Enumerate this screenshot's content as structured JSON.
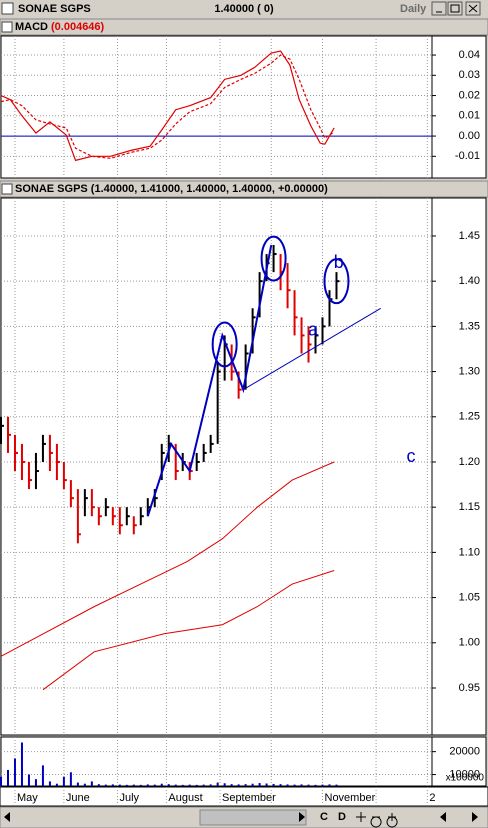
{
  "window": {
    "title": "SONAE SGPS",
    "last": "1.40000 ( 0)",
    "period": "Daily"
  },
  "toolbar": {
    "buttons": [
      "C",
      "D"
    ]
  },
  "chart_data": [
    {
      "type": "line",
      "title": "MACD",
      "value_label": "(0.004646)",
      "x": [
        0,
        4,
        9,
        15,
        21,
        28,
        32,
        39,
        47,
        56,
        64,
        69,
        75,
        81,
        90,
        96,
        103,
        109,
        116,
        120,
        124,
        128,
        133,
        137,
        139,
        143
      ],
      "series": [
        {
          "name": "MACD",
          "color": "#e00000",
          "dash": false,
          "values": [
            0.02,
            0.018,
            0.01,
            0.0015,
            0.007,
            0.0005,
            -0.012,
            -0.01,
            -0.01,
            -0.007,
            -0.005,
            0.003,
            0.013,
            0.015,
            0.019,
            0.028,
            0.03,
            0.034,
            0.041,
            0.042,
            0.035,
            0.018,
            0.005,
            -0.0035,
            -0.004,
            0.004
          ]
        },
        {
          "name": "Signal",
          "color": "#e00000",
          "dash": true,
          "values": [
            0.017,
            0.018,
            0.015,
            0.008,
            0.006,
            0.004,
            -0.006,
            -0.01,
            -0.011,
            -0.008,
            -0.006,
            -0.002,
            0.006,
            0.012,
            0.016,
            0.024,
            0.028,
            0.031,
            0.036,
            0.04,
            0.038,
            0.028,
            0.013,
            0.004,
            -0.001,
            0.002
          ]
        }
      ],
      "zero_line": 0,
      "zero_color": "#0000c0",
      "xlim": [
        0,
        185
      ],
      "ylim": [
        -0.0207,
        0.0494
      ],
      "yticks": [
        0.04,
        0.03,
        0.02,
        0.01,
        {
          "value": 0,
          "label": "0.00"
        },
        -0.01
      ]
    },
    {
      "type": "hlc",
      "title": "SONAE SGPS (1.40000, 1.41000, 1.40000, 1.40000, +0.00000)",
      "up_color": "#000000",
      "down_color": "#e00000",
      "x": [
        0,
        3,
        6,
        9,
        12,
        15,
        18,
        21,
        24,
        27,
        30,
        33,
        36,
        39,
        42,
        45,
        48,
        51,
        54,
        57,
        60,
        63,
        66,
        69,
        72,
        75,
        78,
        81,
        84,
        87,
        90,
        93,
        96,
        99,
        102,
        105,
        108,
        111,
        114,
        117,
        120,
        123,
        126,
        129,
        132,
        135,
        138,
        141,
        144
      ],
      "high": [
        1.25,
        1.25,
        1.23,
        1.22,
        1.2,
        1.21,
        1.23,
        1.23,
        1.22,
        1.2,
        1.18,
        1.17,
        1.17,
        1.17,
        1.15,
        1.16,
        1.15,
        1.15,
        1.15,
        1.14,
        1.15,
        1.16,
        1.17,
        1.22,
        1.23,
        1.22,
        1.21,
        1.2,
        1.21,
        1.22,
        1.23,
        1.31,
        1.34,
        1.33,
        1.3,
        1.33,
        1.37,
        1.41,
        1.43,
        1.44,
        1.43,
        1.42,
        1.39,
        1.36,
        1.35,
        1.35,
        1.36,
        1.39,
        1.41
      ],
      "low": [
        1.22,
        1.21,
        1.19,
        1.18,
        1.17,
        1.17,
        1.2,
        1.19,
        1.18,
        1.17,
        1.15,
        1.11,
        1.14,
        1.14,
        1.13,
        1.14,
        1.13,
        1.12,
        1.13,
        1.12,
        1.13,
        1.14,
        1.15,
        1.18,
        1.2,
        1.18,
        1.19,
        1.18,
        1.19,
        1.2,
        1.21,
        1.22,
        1.29,
        1.29,
        1.27,
        1.28,
        1.32,
        1.36,
        1.4,
        1.41,
        1.39,
        1.37,
        1.34,
        1.32,
        1.31,
        1.32,
        1.33,
        1.35,
        1.38
      ],
      "close": [
        1.24,
        1.23,
        1.21,
        1.2,
        1.18,
        1.19,
        1.22,
        1.21,
        1.2,
        1.18,
        1.16,
        1.12,
        1.16,
        1.15,
        1.14,
        1.15,
        1.14,
        1.13,
        1.14,
        1.13,
        1.14,
        1.15,
        1.16,
        1.21,
        1.22,
        1.19,
        1.2,
        1.19,
        1.2,
        1.21,
        1.22,
        1.3,
        1.33,
        1.3,
        1.28,
        1.32,
        1.36,
        1.4,
        1.42,
        1.43,
        1.41,
        1.39,
        1.36,
        1.34,
        1.33,
        1.34,
        1.35,
        1.38,
        1.4
      ],
      "bands": [
        {
          "color": "#e00000",
          "x": [
            0,
            40,
            80,
            95,
            110,
            125,
            143
          ],
          "values": [
            0.985,
            1.04,
            1.09,
            1.115,
            1.15,
            1.18,
            1.2
          ]
        },
        {
          "color": "#e00000",
          "x": [
            18,
            40,
            70,
            95,
            110,
            125,
            143
          ],
          "values": [
            0.948,
            0.99,
            1.01,
            1.02,
            1.04,
            1.065,
            1.08
          ]
        }
      ],
      "annotations": {
        "color": "#0000c0",
        "zigzag": {
          "x": [
            63,
            73,
            81,
            95,
            104,
            116
          ],
          "y": [
            1.14,
            1.22,
            1.19,
            1.34,
            1.28,
            1.44
          ]
        },
        "trendline": {
          "x": [
            104,
            163
          ],
          "y": [
            1.28,
            1.37
          ]
        },
        "ellipses": [
          {
            "x": 96,
            "y": 1.33
          },
          {
            "x": 117,
            "y": 1.425
          },
          {
            "x": 144,
            "y": 1.4
          }
        ],
        "labels": [
          {
            "text": "a",
            "x": 134,
            "y": 1.345
          },
          {
            "text": "b",
            "x": 145,
            "y": 1.42
          },
          {
            "text": "c",
            "x": 176,
            "y": 1.205
          }
        ]
      },
      "xlim": [
        0,
        185
      ],
      "ylim": [
        0.898,
        1.492
      ],
      "yticks": [
        1.45,
        {
          "value": 1.4,
          "label": "1.40"
        },
        1.35,
        {
          "value": 1.3,
          "label": "1.30"
        },
        1.25,
        {
          "value": 1.2,
          "label": "1.20"
        },
        1.15,
        {
          "value": 1.1,
          "label": "1.10"
        },
        1.05,
        {
          "value": 1,
          "label": "1.00"
        },
        0.95
      ]
    },
    {
      "type": "bar",
      "color": "#0000c0",
      "unit_label": "x100000",
      "x": [
        0,
        3,
        6,
        9,
        12,
        15,
        18,
        21,
        24,
        27,
        30,
        33,
        36,
        39,
        42,
        45,
        48,
        51,
        54,
        57,
        60,
        63,
        66,
        69,
        72,
        75,
        78,
        81,
        84,
        87,
        90,
        93,
        96,
        99,
        102,
        105,
        108,
        111,
        114,
        117,
        120,
        123,
        126,
        129,
        132,
        135,
        138,
        141,
        144
      ],
      "values": [
        9000,
        12000,
        17000,
        24000,
        10000,
        8000,
        14000,
        7000,
        6000,
        9000,
        11000,
        6500,
        6000,
        7000,
        5800,
        5600,
        5700,
        5600,
        5500,
        5600,
        5500,
        5700,
        5600,
        6000,
        5800,
        5600,
        5500,
        5600,
        5500,
        5600,
        5700,
        6500,
        6200,
        5800,
        5700,
        5800,
        6000,
        6300,
        6100,
        5900,
        5800,
        5700,
        5600,
        5700,
        5600,
        5500,
        5600,
        5700,
        5600
      ],
      "xlim": [
        0,
        185
      ],
      "ylim": [
        5000,
        26400
      ],
      "yticks": [
        20000,
        10000
      ],
      "xticks": [
        {
          "value": 6,
          "label": "May"
        },
        {
          "value": 27,
          "label": "June"
        },
        {
          "value": 50,
          "label": "July"
        },
        {
          "value": 71,
          "label": "August"
        },
        {
          "value": 94,
          "label": "September"
        },
        {
          "value": 116,
          "label": null
        },
        {
          "value": 138,
          "label": "November"
        },
        {
          "value": 161,
          "label": null
        },
        {
          "value": 183,
          "label": "2"
        }
      ]
    }
  ]
}
